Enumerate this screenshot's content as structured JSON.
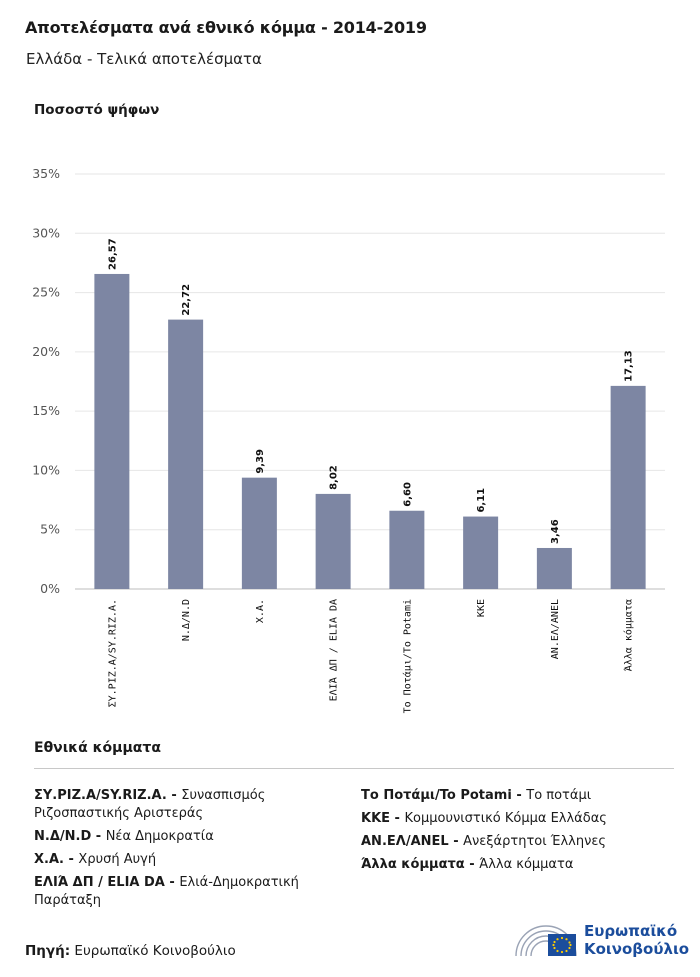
{
  "header": {
    "title": "Αποτελέσματα ανά εθνικό κόμμα - 2014-2019",
    "subtitle": "Ελλάδα - Τελικά αποτελέσματα"
  },
  "chart_data": {
    "type": "bar",
    "title": "Αποτελέσματα ανά εθνικό κόμμα - 2014-2019",
    "subtitle": "Ελλάδα - Τελικά αποτελέσματα",
    "ylabel": "Ποσοστό ψήφων",
    "xlabel": "",
    "ylim": [
      0,
      35
    ],
    "yticks": [
      0,
      5,
      10,
      15,
      20,
      25,
      30,
      35
    ],
    "ytick_labels": [
      "0%",
      "5%",
      "10%",
      "15%",
      "20%",
      "25%",
      "30%",
      "35%"
    ],
    "categories": [
      "ΣΥ.ΡΙΖ.Α/SY.RIZ.A.",
      "Ν.Δ/N.D",
      "Χ.Α.",
      "ΕΛΙΆ ΔΠ / ELIA DA",
      "Το Ποτάμι/To Potami",
      "ΚΚΕ",
      "ΑΝ.ΕΛ/ANEL",
      "Άλλα κόμματα"
    ],
    "values": [
      26.57,
      22.72,
      9.39,
      8.02,
      6.6,
      6.11,
      3.46,
      17.13
    ],
    "value_labels": [
      "26,57",
      "22,72",
      "9,39",
      "8,02",
      "6,60",
      "6,11",
      "3,46",
      "17,13"
    ],
    "bar_color": "#7d86a3",
    "grid": true
  },
  "legend": {
    "title": "Εθνικά κόμματα",
    "left": [
      {
        "abbr": "ΣΥ.ΡΙΖ.Α/SY.RIZ.A. -",
        "name": "Συνασπισμός Ριζοσπαστικής Αριστεράς"
      },
      {
        "abbr": "Ν.Δ/N.D -",
        "name": "Νέα Δημοκρατία"
      },
      {
        "abbr": "Χ.Α. -",
        "name": "Χρυσή Αυγή"
      },
      {
        "abbr": "ΕΛΙΆ ΔΠ / ELIA DA -",
        "name": "Ελιά-Δημοκρατική Παράταξη"
      }
    ],
    "right": [
      {
        "abbr": "Το Ποτάμι/To Potami -",
        "name": "Το ποτάμι"
      },
      {
        "abbr": "ΚΚΕ -",
        "name": "Κομμουνιστικό Κόμμα Ελλάδας"
      },
      {
        "abbr": "ΑΝ.ΕΛ/ANEL -",
        "name": "Ανεξάρτητοι Έλληνες"
      },
      {
        "abbr": "Άλλα κόμματα -",
        "name": "Άλλα κόμματα"
      }
    ]
  },
  "footer": {
    "source_label": "Πηγή:",
    "source_value": "Ευρωπαϊκό Κοινοβούλιο",
    "logo_line1": "Ευρωπαϊκό",
    "logo_line2": "Κοινοβούλιο",
    "logo_color": "#1b4d9c"
  }
}
